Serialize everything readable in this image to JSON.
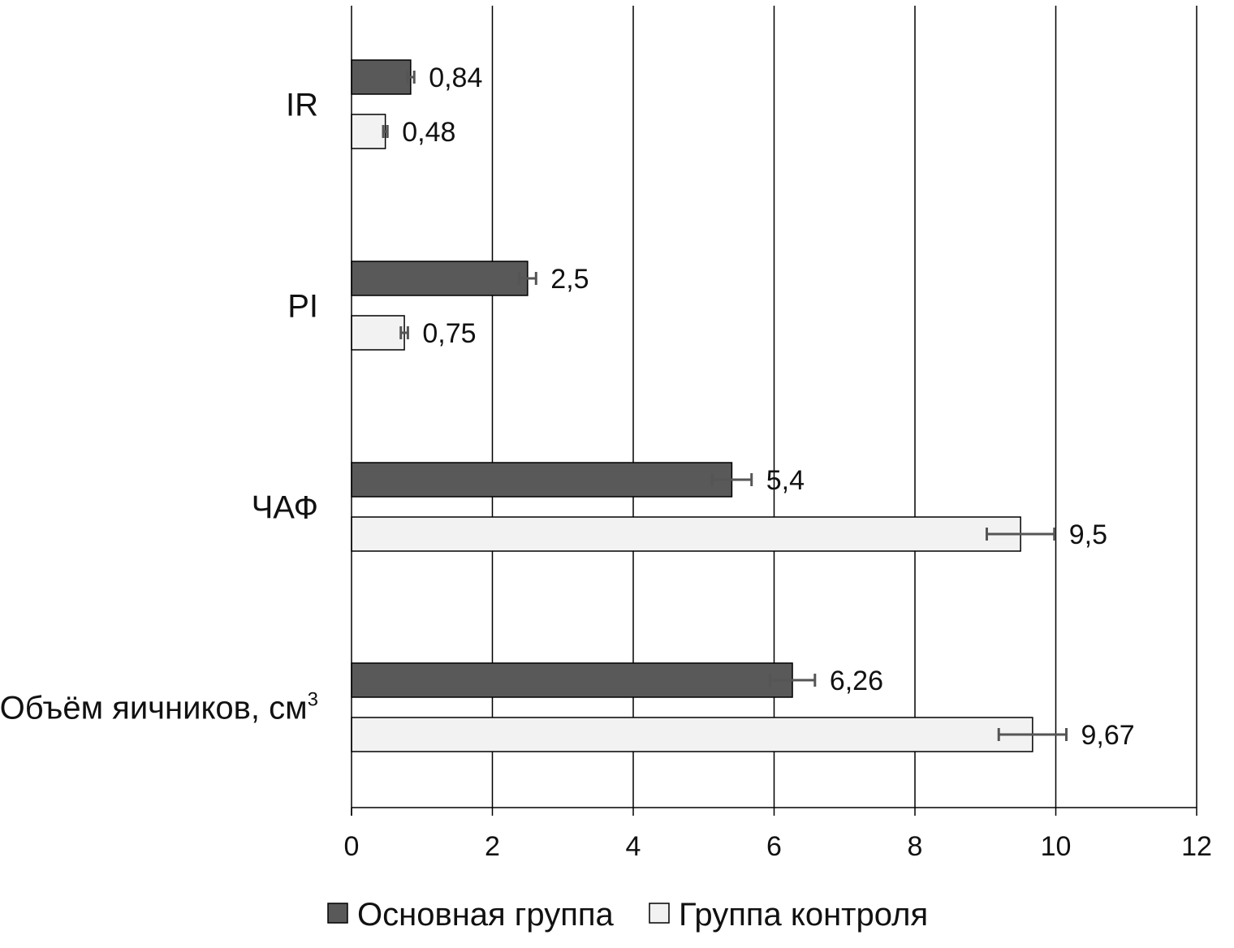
{
  "chart_data": {
    "type": "bar",
    "orientation": "horizontal",
    "categories": [
      "IR",
      "PI",
      "ЧАФ",
      "Объём яичников, см"
    ],
    "category_superscripts": [
      "",
      "",
      "",
      "3"
    ],
    "series": [
      {
        "name": "Основная группа",
        "color": "#595959",
        "values": [
          0.84,
          2.5,
          5.4,
          6.26
        ],
        "labels": [
          "0,84",
          "2,5",
          "5,4",
          "6,26"
        ],
        "errors": [
          0.05,
          0.12,
          0.28,
          0.32
        ]
      },
      {
        "name": "Группа контроля",
        "color": "#f2f2f2",
        "values": [
          0.48,
          0.75,
          9.5,
          9.67
        ],
        "labels": [
          "0,48",
          "0,75",
          "9,5",
          "9,67"
        ],
        "errors": [
          0.03,
          0.05,
          0.48,
          0.48
        ]
      }
    ],
    "xlim": [
      0,
      12
    ],
    "xticks": [
      0,
      2,
      4,
      6,
      8,
      10,
      12
    ],
    "grid": "vertical",
    "legend": "bottom"
  }
}
